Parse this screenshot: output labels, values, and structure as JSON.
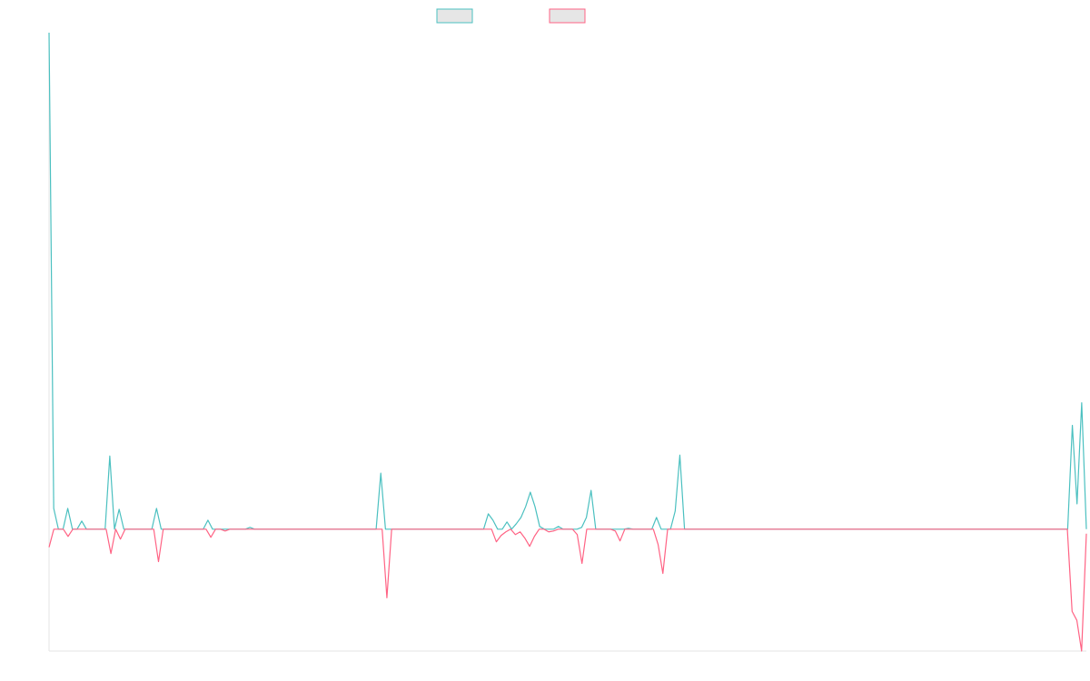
{
  "chart_data": {
    "type": "line",
    "title": "",
    "xlabel": "",
    "ylabel": "",
    "legend_position": "top-center",
    "grid": false,
    "ylim": [
      -135,
      550
    ],
    "series": [
      {
        "color": "#4bc0c0",
        "values": [
          550,
          23,
          0,
          0,
          23,
          0,
          0,
          9,
          0,
          0,
          0,
          0,
          0,
          81,
          0,
          22,
          0,
          0,
          0,
          0,
          0,
          0,
          0,
          23,
          0,
          0,
          0,
          0,
          0,
          0,
          0,
          0,
          0,
          0,
          10,
          0,
          0,
          0,
          0,
          0,
          0,
          0,
          0,
          2,
          0,
          0,
          0,
          0,
          0,
          0,
          0,
          0,
          0,
          0,
          0,
          0,
          0,
          0,
          0,
          0,
          0,
          0,
          0,
          0,
          0,
          0,
          0,
          0,
          0,
          0,
          0,
          62,
          0,
          0,
          0,
          0,
          0,
          0,
          0,
          0,
          0,
          0,
          0,
          0,
          0,
          0,
          0,
          0,
          0,
          0,
          0,
          0,
          0,
          0,
          17,
          10,
          0,
          0,
          8,
          0,
          6,
          13,
          25,
          41,
          25,
          3,
          0,
          0,
          0,
          3,
          0,
          0,
          0,
          0,
          2,
          13,
          43,
          0,
          0,
          0,
          0,
          0,
          0,
          0,
          1,
          0,
          0,
          0,
          0,
          0,
          13,
          0,
          0,
          0,
          20,
          82,
          0,
          0,
          0,
          0,
          0,
          0,
          0,
          0,
          0,
          0,
          0,
          0,
          0,
          0,
          0,
          0,
          0,
          0,
          0,
          0,
          0,
          0,
          0,
          0,
          0,
          0,
          0,
          0,
          0,
          0,
          0,
          0,
          0,
          0,
          0,
          0,
          0,
          0,
          0,
          0,
          0,
          0,
          0,
          0,
          0,
          0,
          0,
          0,
          0,
          0,
          0,
          0,
          0,
          0,
          0,
          0,
          0,
          0,
          0,
          0,
          0,
          0,
          0,
          0,
          0,
          0,
          0,
          0,
          0,
          0,
          0,
          0,
          0,
          0,
          0,
          0,
          0,
          0,
          0,
          0,
          0,
          0,
          0,
          115,
          28,
          140,
          0
        ]
      },
      {
        "color": "#ff6384",
        "values": [
          -20,
          0,
          0,
          0,
          -8,
          0,
          0,
          0,
          0,
          0,
          0,
          0,
          0,
          -27,
          0,
          -11,
          0,
          0,
          0,
          0,
          0,
          0,
          0,
          -36,
          0,
          0,
          0,
          0,
          0,
          0,
          0,
          0,
          0,
          0,
          -9,
          0,
          0,
          -2,
          0,
          0,
          0,
          0,
          0,
          0,
          0,
          0,
          0,
          0,
          0,
          0,
          0,
          0,
          0,
          0,
          0,
          0,
          0,
          0,
          0,
          0,
          0,
          0,
          0,
          0,
          0,
          0,
          0,
          0,
          0,
          0,
          0,
          -76,
          0,
          0,
          0,
          0,
          0,
          0,
          0,
          0,
          0,
          0,
          0,
          0,
          0,
          0,
          0,
          0,
          0,
          0,
          0,
          0,
          0,
          0,
          -14,
          -7,
          -3,
          0,
          -6,
          -3,
          -10,
          -19,
          -8,
          0,
          0,
          -3,
          -2,
          0,
          0,
          0,
          0,
          -6,
          -38,
          0,
          0,
          0,
          0,
          0,
          0,
          -2,
          -13,
          0,
          0,
          0,
          0,
          0,
          0,
          0,
          -17,
          -49,
          0,
          0,
          0,
          0,
          0,
          0,
          0,
          0,
          0,
          0,
          0,
          0,
          0,
          0,
          0,
          0,
          0,
          0,
          0,
          0,
          0,
          0,
          0,
          0,
          0,
          0,
          0,
          0,
          0,
          0,
          0,
          0,
          0,
          0,
          0,
          0,
          0,
          0,
          0,
          0,
          0,
          0,
          0,
          0,
          0,
          0,
          0,
          0,
          0,
          0,
          0,
          0,
          0,
          0,
          0,
          0,
          0,
          0,
          0,
          0,
          0,
          0,
          0,
          0,
          0,
          0,
          0,
          0,
          0,
          0,
          0,
          0,
          0,
          0,
          0,
          0,
          0,
          0,
          0,
          0,
          0,
          0,
          0,
          0,
          0,
          -91,
          -101,
          -135,
          -5
        ]
      }
    ],
    "legend": [
      {
        "label": "",
        "color": "#4bc0c0"
      },
      {
        "label": "",
        "color": "#ff6384"
      }
    ]
  }
}
